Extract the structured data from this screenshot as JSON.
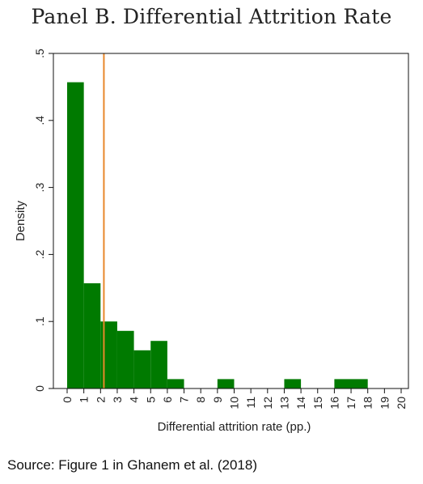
{
  "panel_title": "Panel B. Differential Attrition Rate",
  "source_note": "Source: Figure 1 in Ghanem et al. (2018)",
  "chart_data": {
    "type": "bar",
    "title": "Panel B. Differential Attrition Rate",
    "xlabel": "Differential attrition rate (pp.)",
    "ylabel": "Density",
    "xlim": [
      0,
      20
    ],
    "ylim": [
      0,
      0.5
    ],
    "x_ticks": [
      "0",
      "1",
      "2",
      "3",
      "4",
      "5",
      "6",
      "7",
      "8",
      "9",
      "10",
      "11",
      "12",
      "13",
      "14",
      "15",
      "16",
      "17",
      "18",
      "19",
      "20"
    ],
    "y_ticks": [
      "0",
      ".1",
      ".2",
      ".3",
      ".4",
      ".5"
    ],
    "bars": [
      {
        "x0": 0,
        "x1": 1,
        "value": 0.457
      },
      {
        "x0": 1,
        "x1": 2,
        "value": 0.157
      },
      {
        "x0": 2,
        "x1": 3,
        "value": 0.1
      },
      {
        "x0": 3,
        "x1": 4,
        "value": 0.086
      },
      {
        "x0": 4,
        "x1": 5,
        "value": 0.057
      },
      {
        "x0": 5,
        "x1": 6,
        "value": 0.071
      },
      {
        "x0": 6,
        "x1": 7,
        "value": 0.014
      },
      {
        "x0": 9,
        "x1": 10,
        "value": 0.014
      },
      {
        "x0": 13,
        "x1": 14,
        "value": 0.014
      },
      {
        "x0": 16,
        "x1": 18,
        "value": 0.014
      }
    ],
    "reference_line": {
      "x": 2.2,
      "color": "#e8872b"
    },
    "bar_color": "#007a00",
    "grid": false,
    "legend": "none"
  }
}
